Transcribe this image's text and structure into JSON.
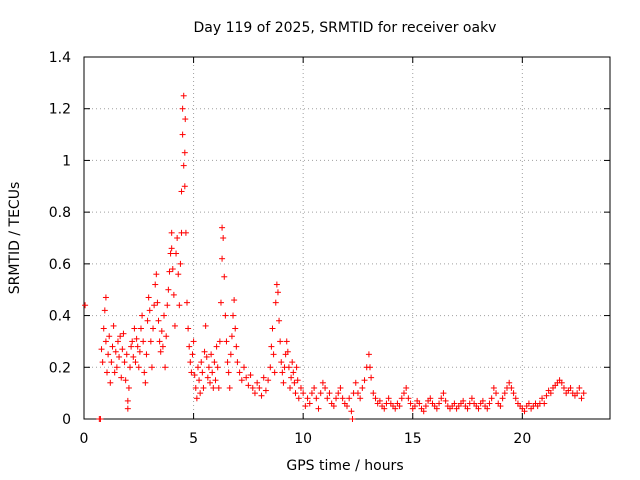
{
  "chart_data": {
    "type": "scatter",
    "title": "Day 119 of 2025, SRMTID for receiver oakv",
    "xlabel": "GPS time / hours",
    "ylabel": "SRMTID / TECUs",
    "xlim": [
      0,
      24
    ],
    "ylim": [
      0,
      1.4
    ],
    "x_ticks": [
      0,
      5,
      10,
      15,
      20
    ],
    "y_ticks": [
      0,
      0.2,
      0.4,
      0.6,
      0.8,
      1,
      1.2,
      1.4
    ],
    "x_tick_labels": [
      "0",
      "5",
      "10",
      "15",
      "20"
    ],
    "y_tick_labels": [
      "0",
      "0.2",
      "0.4",
      "0.6",
      "0.8",
      "1",
      "1.2",
      "1.4"
    ],
    "grid": true,
    "marker": "plus",
    "marker_color": "#ff0000",
    "series": [
      {
        "name": "SRMTID",
        "points": [
          [
            0.05,
            0.44
          ],
          [
            0.7,
            0.0
          ],
          [
            0.75,
            0.0
          ],
          [
            0.8,
            0.27
          ],
          [
            0.85,
            0.22
          ],
          [
            0.9,
            0.35
          ],
          [
            0.95,
            0.42
          ],
          [
            1.0,
            0.47
          ],
          [
            1.0,
            0.3
          ],
          [
            1.05,
            0.18
          ],
          [
            1.1,
            0.25
          ],
          [
            1.15,
            0.32
          ],
          [
            1.2,
            0.14
          ],
          [
            1.25,
            0.22
          ],
          [
            1.3,
            0.28
          ],
          [
            1.35,
            0.36
          ],
          [
            1.4,
            0.18
          ],
          [
            1.45,
            0.26
          ],
          [
            1.5,
            0.2
          ],
          [
            1.55,
            0.3
          ],
          [
            1.6,
            0.24
          ],
          [
            1.65,
            0.32
          ],
          [
            1.7,
            0.16
          ],
          [
            1.75,
            0.27
          ],
          [
            1.8,
            0.33
          ],
          [
            1.85,
            0.22
          ],
          [
            1.9,
            0.15
          ],
          [
            1.95,
            0.25
          ],
          [
            2.0,
            0.07
          ],
          [
            2.0,
            0.04
          ],
          [
            2.05,
            0.12
          ],
          [
            2.1,
            0.2
          ],
          [
            2.15,
            0.28
          ],
          [
            2.2,
            0.3
          ],
          [
            2.25,
            0.24
          ],
          [
            2.3,
            0.35
          ],
          [
            2.35,
            0.22
          ],
          [
            2.4,
            0.31
          ],
          [
            2.45,
            0.28
          ],
          [
            2.5,
            0.2
          ],
          [
            2.55,
            0.26
          ],
          [
            2.6,
            0.35
          ],
          [
            2.65,
            0.4
          ],
          [
            2.7,
            0.3
          ],
          [
            2.75,
            0.18
          ],
          [
            2.8,
            0.14
          ],
          [
            2.85,
            0.25
          ],
          [
            2.9,
            0.38
          ],
          [
            2.95,
            0.47
          ],
          [
            3.0,
            0.42
          ],
          [
            3.05,
            0.3
          ],
          [
            3.1,
            0.2
          ],
          [
            3.15,
            0.35
          ],
          [
            3.2,
            0.44
          ],
          [
            3.25,
            0.52
          ],
          [
            3.3,
            0.56
          ],
          [
            3.35,
            0.45
          ],
          [
            3.4,
            0.38
          ],
          [
            3.45,
            0.3
          ],
          [
            3.5,
            0.26
          ],
          [
            3.55,
            0.34
          ],
          [
            3.6,
            0.28
          ],
          [
            3.65,
            0.4
          ],
          [
            3.7,
            0.2
          ],
          [
            3.75,
            0.32
          ],
          [
            3.8,
            0.44
          ],
          [
            3.85,
            0.5
          ],
          [
            3.9,
            0.57
          ],
          [
            3.95,
            0.64
          ],
          [
            4.0,
            0.72
          ],
          [
            4.0,
            0.66
          ],
          [
            4.05,
            0.58
          ],
          [
            4.1,
            0.48
          ],
          [
            4.15,
            0.36
          ],
          [
            4.2,
            0.64
          ],
          [
            4.25,
            0.7
          ],
          [
            4.3,
            0.56
          ],
          [
            4.35,
            0.44
          ],
          [
            4.4,
            0.6
          ],
          [
            4.45,
            0.72
          ],
          [
            4.45,
            0.88
          ],
          [
            4.5,
            1.2
          ],
          [
            4.5,
            1.1
          ],
          [
            4.55,
            1.25
          ],
          [
            4.55,
            0.98
          ],
          [
            4.6,
            1.03
          ],
          [
            4.6,
            0.9
          ],
          [
            4.62,
            1.16
          ],
          [
            4.65,
            0.72
          ],
          [
            4.7,
            0.45
          ],
          [
            4.75,
            0.35
          ],
          [
            4.8,
            0.28
          ],
          [
            4.85,
            0.22
          ],
          [
            4.9,
            0.18
          ],
          [
            4.95,
            0.25
          ],
          [
            5.0,
            0.3
          ],
          [
            5.05,
            0.17
          ],
          [
            5.1,
            0.12
          ],
          [
            5.15,
            0.08
          ],
          [
            5.2,
            0.2
          ],
          [
            5.25,
            0.15
          ],
          [
            5.3,
            0.1
          ],
          [
            5.35,
            0.22
          ],
          [
            5.4,
            0.18
          ],
          [
            5.45,
            0.12
          ],
          [
            5.5,
            0.26
          ],
          [
            5.55,
            0.36
          ],
          [
            5.6,
            0.24
          ],
          [
            5.65,
            0.16
          ],
          [
            5.7,
            0.2
          ],
          [
            5.75,
            0.14
          ],
          [
            5.8,
            0.25
          ],
          [
            5.85,
            0.18
          ],
          [
            5.9,
            0.12
          ],
          [
            5.95,
            0.22
          ],
          [
            6.0,
            0.15
          ],
          [
            6.05,
            0.28
          ],
          [
            6.1,
            0.2
          ],
          [
            6.15,
            0.12
          ],
          [
            6.2,
            0.3
          ],
          [
            6.25,
            0.45
          ],
          [
            6.3,
            0.62
          ],
          [
            6.3,
            0.74
          ],
          [
            6.35,
            0.7
          ],
          [
            6.4,
            0.55
          ],
          [
            6.45,
            0.4
          ],
          [
            6.5,
            0.3
          ],
          [
            6.55,
            0.22
          ],
          [
            6.6,
            0.18
          ],
          [
            6.65,
            0.12
          ],
          [
            6.7,
            0.25
          ],
          [
            6.75,
            0.32
          ],
          [
            6.8,
            0.4
          ],
          [
            6.85,
            0.46
          ],
          [
            6.9,
            0.35
          ],
          [
            6.95,
            0.28
          ],
          [
            7.0,
            0.22
          ],
          [
            7.1,
            0.18
          ],
          [
            7.2,
            0.15
          ],
          [
            7.3,
            0.2
          ],
          [
            7.4,
            0.16
          ],
          [
            7.5,
            0.13
          ],
          [
            7.6,
            0.17
          ],
          [
            7.7,
            0.12
          ],
          [
            7.8,
            0.1
          ],
          [
            7.9,
            0.14
          ],
          [
            8.0,
            0.12
          ],
          [
            8.1,
            0.09
          ],
          [
            8.2,
            0.16
          ],
          [
            8.3,
            0.11
          ],
          [
            8.4,
            0.15
          ],
          [
            8.5,
            0.2
          ],
          [
            8.55,
            0.28
          ],
          [
            8.6,
            0.35
          ],
          [
            8.65,
            0.25
          ],
          [
            8.7,
            0.18
          ],
          [
            8.75,
            0.45
          ],
          [
            8.8,
            0.52
          ],
          [
            8.85,
            0.49
          ],
          [
            8.9,
            0.38
          ],
          [
            8.95,
            0.3
          ],
          [
            9.0,
            0.22
          ],
          [
            9.05,
            0.18
          ],
          [
            9.1,
            0.14
          ],
          [
            9.15,
            0.2
          ],
          [
            9.2,
            0.25
          ],
          [
            9.25,
            0.3
          ],
          [
            9.3,
            0.26
          ],
          [
            9.35,
            0.2
          ],
          [
            9.4,
            0.12
          ],
          [
            9.45,
            0.16
          ],
          [
            9.5,
            0.22
          ],
          [
            9.55,
            0.18
          ],
          [
            9.6,
            0.14
          ],
          [
            9.65,
            0.1
          ],
          [
            9.7,
            0.2
          ],
          [
            9.75,
            0.15
          ],
          [
            9.8,
            0.08
          ],
          [
            9.9,
            0.12
          ],
          [
            10.0,
            0.1
          ],
          [
            10.1,
            0.05
          ],
          [
            10.2,
            0.08
          ],
          [
            10.3,
            0.06
          ],
          [
            10.4,
            0.1
          ],
          [
            10.5,
            0.12
          ],
          [
            10.6,
            0.08
          ],
          [
            10.7,
            0.04
          ],
          [
            10.8,
            0.1
          ],
          [
            10.9,
            0.14
          ],
          [
            11.0,
            0.12
          ],
          [
            11.1,
            0.08
          ],
          [
            11.2,
            0.1
          ],
          [
            11.3,
            0.06
          ],
          [
            11.4,
            0.05
          ],
          [
            11.5,
            0.08
          ],
          [
            11.6,
            0.1
          ],
          [
            11.7,
            0.12
          ],
          [
            11.8,
            0.08
          ],
          [
            11.9,
            0.06
          ],
          [
            12.0,
            0.05
          ],
          [
            12.1,
            0.08
          ],
          [
            12.2,
            0.03
          ],
          [
            12.25,
            0.0
          ],
          [
            12.3,
            0.1
          ],
          [
            12.4,
            0.14
          ],
          [
            12.5,
            0.1
          ],
          [
            12.6,
            0.08
          ],
          [
            12.7,
            0.12
          ],
          [
            12.8,
            0.15
          ],
          [
            12.9,
            0.2
          ],
          [
            13.0,
            0.25
          ],
          [
            13.05,
            0.2
          ],
          [
            13.1,
            0.16
          ],
          [
            13.2,
            0.1
          ],
          [
            13.3,
            0.08
          ],
          [
            13.4,
            0.06
          ],
          [
            13.5,
            0.07
          ],
          [
            13.6,
            0.05
          ],
          [
            13.7,
            0.04
          ],
          [
            13.8,
            0.06
          ],
          [
            13.9,
            0.08
          ],
          [
            14.0,
            0.06
          ],
          [
            14.1,
            0.05
          ],
          [
            14.2,
            0.04
          ],
          [
            14.3,
            0.06
          ],
          [
            14.4,
            0.05
          ],
          [
            14.5,
            0.08
          ],
          [
            14.6,
            0.1
          ],
          [
            14.7,
            0.12
          ],
          [
            14.8,
            0.08
          ],
          [
            14.9,
            0.06
          ],
          [
            15.0,
            0.04
          ],
          [
            15.1,
            0.05
          ],
          [
            15.2,
            0.07
          ],
          [
            15.3,
            0.06
          ],
          [
            15.4,
            0.04
          ],
          [
            15.5,
            0.03
          ],
          [
            15.6,
            0.05
          ],
          [
            15.7,
            0.07
          ],
          [
            15.8,
            0.08
          ],
          [
            15.9,
            0.06
          ],
          [
            16.0,
            0.05
          ],
          [
            16.1,
            0.04
          ],
          [
            16.2,
            0.06
          ],
          [
            16.3,
            0.08
          ],
          [
            16.4,
            0.1
          ],
          [
            16.5,
            0.07
          ],
          [
            16.6,
            0.05
          ],
          [
            16.7,
            0.04
          ],
          [
            16.8,
            0.05
          ],
          [
            16.9,
            0.06
          ],
          [
            17.0,
            0.04
          ],
          [
            17.1,
            0.05
          ],
          [
            17.2,
            0.06
          ],
          [
            17.3,
            0.07
          ],
          [
            17.4,
            0.05
          ],
          [
            17.5,
            0.04
          ],
          [
            17.6,
            0.06
          ],
          [
            17.7,
            0.08
          ],
          [
            17.8,
            0.06
          ],
          [
            17.9,
            0.05
          ],
          [
            18.0,
            0.04
          ],
          [
            18.1,
            0.06
          ],
          [
            18.2,
            0.07
          ],
          [
            18.3,
            0.05
          ],
          [
            18.4,
            0.04
          ],
          [
            18.5,
            0.06
          ],
          [
            18.6,
            0.08
          ],
          [
            18.7,
            0.12
          ],
          [
            18.8,
            0.1
          ],
          [
            18.9,
            0.06
          ],
          [
            19.0,
            0.05
          ],
          [
            19.1,
            0.08
          ],
          [
            19.2,
            0.1
          ],
          [
            19.3,
            0.12
          ],
          [
            19.4,
            0.14
          ],
          [
            19.5,
            0.12
          ],
          [
            19.6,
            0.1
          ],
          [
            19.7,
            0.08
          ],
          [
            19.8,
            0.06
          ],
          [
            19.9,
            0.05
          ],
          [
            20.0,
            0.04
          ],
          [
            20.1,
            0.03
          ],
          [
            20.2,
            0.05
          ],
          [
            20.3,
            0.06
          ],
          [
            20.4,
            0.04
          ],
          [
            20.5,
            0.05
          ],
          [
            20.6,
            0.06
          ],
          [
            20.7,
            0.05
          ],
          [
            20.8,
            0.06
          ],
          [
            20.9,
            0.08
          ],
          [
            21.0,
            0.06
          ],
          [
            21.1,
            0.09
          ],
          [
            21.2,
            0.11
          ],
          [
            21.3,
            0.1
          ],
          [
            21.4,
            0.12
          ],
          [
            21.5,
            0.13
          ],
          [
            21.6,
            0.14
          ],
          [
            21.7,
            0.15
          ],
          [
            21.8,
            0.14
          ],
          [
            21.9,
            0.12
          ],
          [
            22.0,
            0.1
          ],
          [
            22.1,
            0.11
          ],
          [
            22.2,
            0.12
          ],
          [
            22.3,
            0.1
          ],
          [
            22.4,
            0.09
          ],
          [
            22.5,
            0.1
          ],
          [
            22.6,
            0.12
          ],
          [
            22.7,
            0.08
          ],
          [
            22.8,
            0.1
          ]
        ]
      }
    ]
  }
}
